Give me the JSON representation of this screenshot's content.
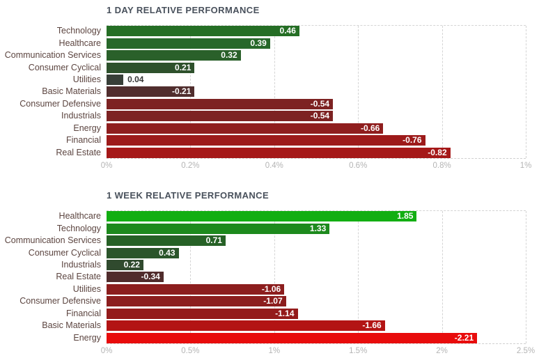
{
  "colors": {
    "background": "#ffffff",
    "title_text": "#49515c",
    "category_label": "#5c4540",
    "tick_label": "#b4b4b4",
    "grid_line": "#d4d4d4",
    "value_label_inside": "#ffffff",
    "value_label_outside": "#333333"
  },
  "chart_data": [
    {
      "type": "bar",
      "orientation": "horizontal",
      "title": "1 DAY RELATIVE PERFORMANCE",
      "xlabel": "",
      "ylabel": "",
      "unit": "%",
      "categories": [
        "Technology",
        "Healthcare",
        "Communication Services",
        "Consumer Cyclical",
        "Utilities",
        "Basic Materials",
        "Consumer Defensive",
        "Industrials",
        "Energy",
        "Financial",
        "Real Estate"
      ],
      "values": [
        0.46,
        0.39,
        0.32,
        0.21,
        0.04,
        -0.21,
        -0.54,
        -0.54,
        -0.66,
        -0.76,
        -0.82
      ],
      "value_labels": [
        "0.46",
        "0.39",
        "0.32",
        "0.21",
        "0.04",
        "-0.21",
        "-0.54",
        "-0.54",
        "-0.66",
        "-0.76",
        "-0.82"
      ],
      "bar_colors": [
        "#256e25",
        "#27682a",
        "#2a602a",
        "#2e512c",
        "#383f38",
        "#512e2e",
        "#7d2222",
        "#7d2222",
        "#8f1e1e",
        "#9d1a1a",
        "#a51818"
      ],
      "bar_length_basis": "absolute_value",
      "x_ticks": [
        "0%",
        "0.2%",
        "0.4%",
        "0.6%",
        "0.8%",
        "1%"
      ],
      "xlim": [
        0,
        1
      ],
      "grid": true,
      "legend": false
    },
    {
      "type": "bar",
      "orientation": "horizontal",
      "title": "1 WEEK RELATIVE PERFORMANCE",
      "xlabel": "",
      "ylabel": "",
      "unit": "%",
      "categories": [
        "Healthcare",
        "Technology",
        "Communication Services",
        "Consumer Cyclical",
        "Industrials",
        "Real Estate",
        "Utilities",
        "Consumer Defensive",
        "Financial",
        "Basic Materials",
        "Energy"
      ],
      "values": [
        1.85,
        1.33,
        0.71,
        0.43,
        0.22,
        -0.34,
        -1.06,
        -1.07,
        -1.14,
        -1.66,
        -2.21
      ],
      "value_labels": [
        "1.85",
        "1.33",
        "0.71",
        "0.43",
        "0.22",
        "-0.34",
        "-1.06",
        "-1.07",
        "-1.14",
        "-1.66",
        "-2.21"
      ],
      "bar_colors": [
        "#12ae12",
        "#1d8a1d",
        "#266126",
        "#2b552b",
        "#304a2e",
        "#502c2c",
        "#8c1e1e",
        "#8c1e1e",
        "#941b1b",
        "#b31414",
        "#e80c0c"
      ],
      "bar_length_basis": "absolute_value",
      "x_ticks": [
        "0%",
        "0.5%",
        "1%",
        "1.5%",
        "2%",
        "2.5%"
      ],
      "xlim": [
        0,
        2.5
      ],
      "grid": true,
      "legend": false
    }
  ]
}
